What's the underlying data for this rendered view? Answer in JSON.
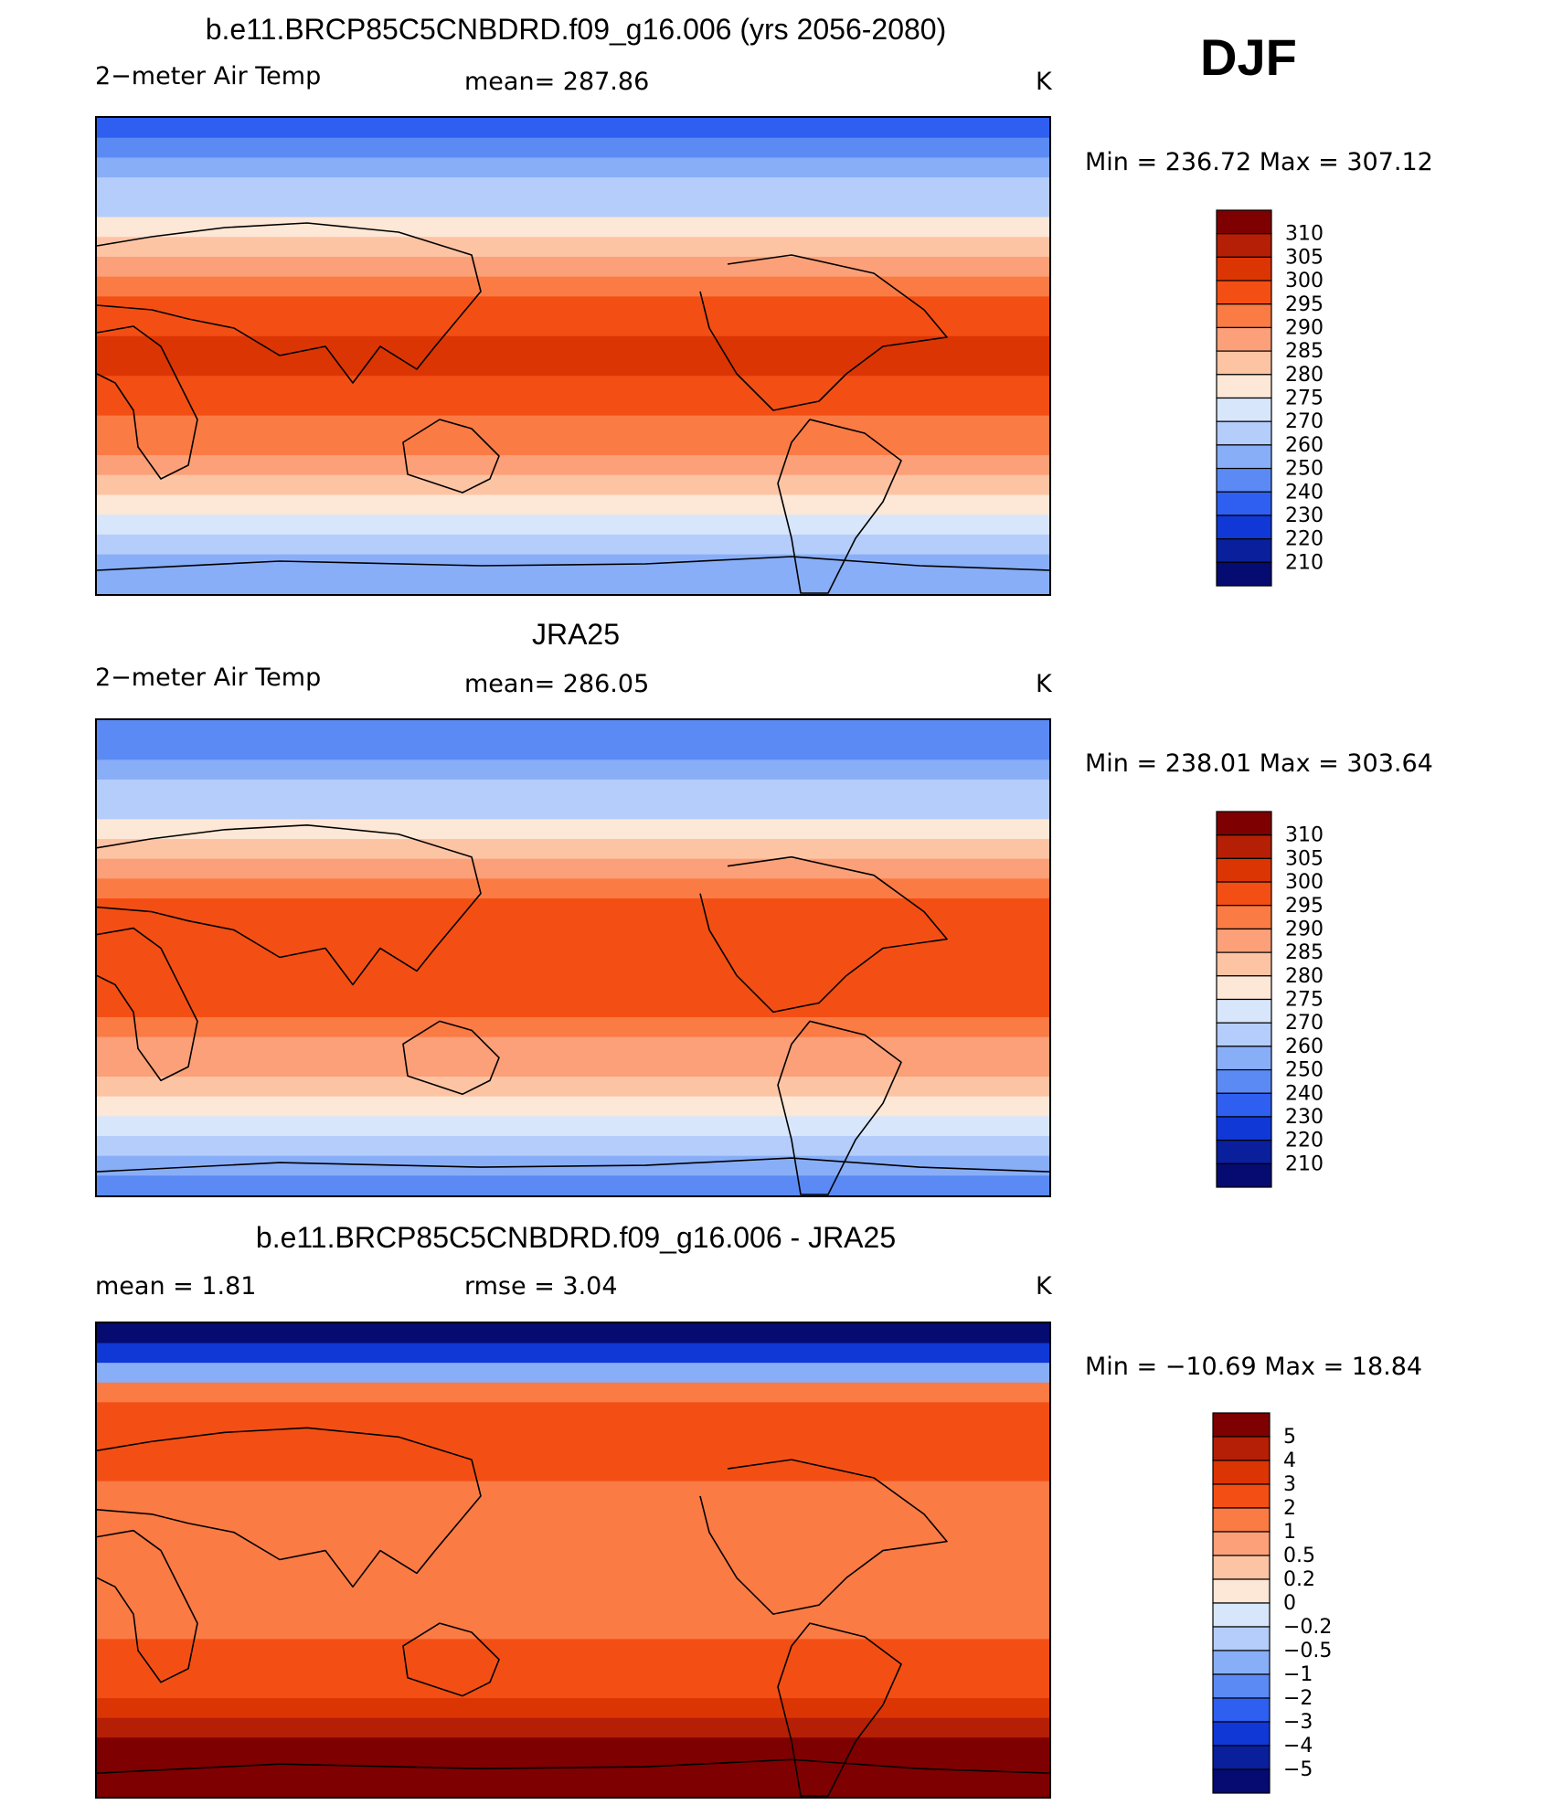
{
  "season": "DJF",
  "panels": [
    {
      "id": "model",
      "title": "b.e11.BRCP85C5CNBDRD.f09_g16.006 (yrs 2056-2080)",
      "left_label": "2−meter Air Temp",
      "center_label": "mean=  287.86",
      "unit": "K",
      "minmax": "Min  =  236.72  Max  =  307.12"
    },
    {
      "id": "obs",
      "title": "JRA25",
      "left_label": "2−meter Air Temp",
      "center_label": "mean=  286.05",
      "unit": "K",
      "minmax": "Min  =  238.01  Max  =  303.64"
    },
    {
      "id": "diff",
      "title": "b.e11.BRCP85C5CNBDRD.f09_g16.006 - JRA25",
      "left_label": "mean  =      1.81",
      "center_label": "rmse  =      3.04",
      "unit": "K",
      "minmax": "Min  =  −10.69  Max  =    18.84"
    }
  ],
  "chart_data": [
    {
      "type": "heatmap",
      "title": "b.e11.BRCP85C5CNBDRD.f09_g16.006 (yrs 2056-2080)",
      "variable": "2-meter Air Temp",
      "units": "K",
      "mean": 287.86,
      "min": 236.72,
      "max": 307.12,
      "legend_levels": [
        "310",
        "305",
        "300",
        "295",
        "290",
        "285",
        "280",
        "275",
        "270",
        "260",
        "250",
        "240",
        "230",
        "220",
        "210"
      ],
      "legend_colors": [
        "#7f0000",
        "#b51f05",
        "#dc3504",
        "#f34f14",
        "#fb7b45",
        "#fba078",
        "#fdc4a4",
        "#fde7d6",
        "#d8e6fb",
        "#b4cdfa",
        "#89aef8",
        "#5b8af4",
        "#2f5ff0",
        "#0f38d6",
        "#0a1f9c",
        "#050b70"
      ],
      "lat_profile_K": [
        238,
        244,
        252,
        262,
        268,
        275,
        282,
        288,
        293,
        297,
        299,
        300,
        300,
        299,
        297,
        294,
        290,
        286,
        281,
        276,
        272,
        266,
        258,
        250
      ]
    },
    {
      "type": "heatmap",
      "title": "JRA25",
      "variable": "2-meter Air Temp",
      "units": "K",
      "mean": 286.05,
      "min": 238.01,
      "max": 303.64,
      "legend_levels": [
        "310",
        "305",
        "300",
        "295",
        "290",
        "285",
        "280",
        "275",
        "270",
        "260",
        "250",
        "240",
        "230",
        "220",
        "210"
      ],
      "legend_colors": [
        "#7f0000",
        "#b51f05",
        "#dc3504",
        "#f34f14",
        "#fb7b45",
        "#fba078",
        "#fdc4a4",
        "#fde7d6",
        "#d8e6fb",
        "#b4cdfa",
        "#89aef8",
        "#5b8af4",
        "#2f5ff0",
        "#0f38d6",
        "#0a1f9c",
        "#050b70"
      ],
      "lat_profile_K": [
        240,
        246,
        254,
        263,
        269,
        275,
        281,
        287,
        292,
        296,
        298,
        299,
        299,
        298,
        296,
        293,
        289,
        285,
        280,
        275,
        270,
        264,
        257,
        249
      ]
    },
    {
      "type": "heatmap",
      "title": "b.e11.BRCP85C5CNBDRD.f09_g16.006 - JRA25",
      "variable": "difference",
      "units": "K",
      "mean": 1.81,
      "rmse": 3.04,
      "min": -10.69,
      "max": 18.84,
      "legend_levels": [
        "5",
        "4",
        "3",
        "2",
        "1",
        "0.5",
        "0.2",
        "0",
        "−0.2",
        "−0.5",
        "−1",
        "−2",
        "−3",
        "−4",
        "−5"
      ],
      "legend_colors": [
        "#7f0000",
        "#b51f05",
        "#dc3504",
        "#f34f14",
        "#fb7b45",
        "#fba078",
        "#fdc4a4",
        "#fde7d6",
        "#d8e6fb",
        "#b4cdfa",
        "#89aef8",
        "#5b8af4",
        "#2f5ff0",
        "#0f38d6",
        "#0a1f9c",
        "#050b70"
      ],
      "lat_profile_K": [
        -6,
        -4,
        -1,
        1.5,
        2,
        2,
        2,
        2,
        1.8,
        1.6,
        1.6,
        1.6,
        1.6,
        1.6,
        1.6,
        1.8,
        2,
        2,
        2.4,
        3,
        4,
        6,
        8,
        9
      ]
    }
  ]
}
